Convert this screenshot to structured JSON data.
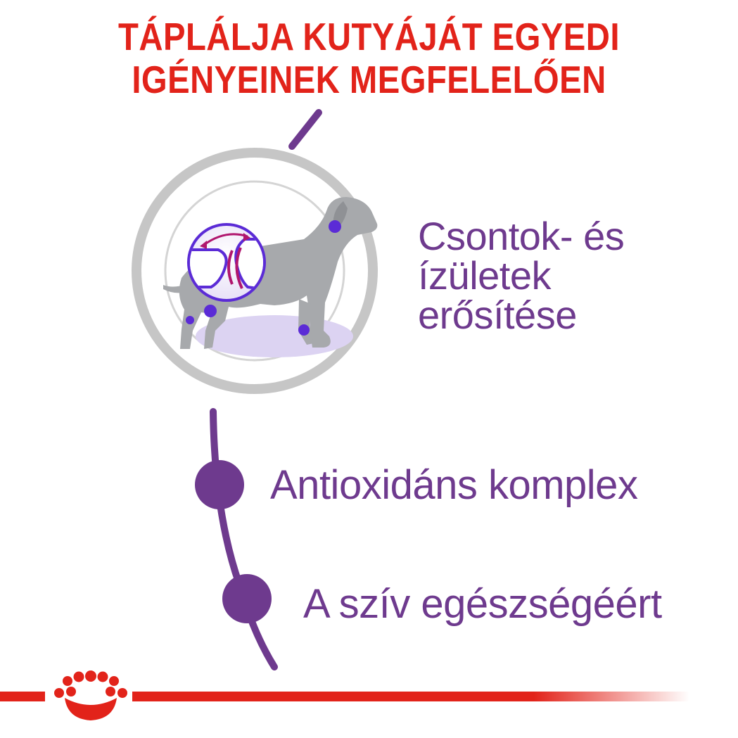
{
  "headline": {
    "line1": "TÁPLÁLJA KUTYÁJÁT EGYEDI",
    "line2": "IGÉNYEINEK MEGFELELŐEN"
  },
  "benefits": [
    {
      "lines": [
        "Csontok- és",
        "ízületek",
        "erősítése"
      ],
      "icon": "dog-joint-icon"
    },
    {
      "lines": [
        "Antioxidáns komplex"
      ],
      "icon": "timeline-dot-icon"
    },
    {
      "lines": [
        "A szív egészségéért"
      ],
      "icon": "timeline-dot-icon"
    }
  ],
  "brand": {
    "icon": "royal-canin-crown-logo"
  },
  "colors": {
    "headline": "#e2231a",
    "accent": "#6e3a8e",
    "ring": "#c6c6c6",
    "dog": "#a7a9ac",
    "joint_dot": "#5b2bd6",
    "floor": "#dcd3f2",
    "brand_red": "#e2231a"
  }
}
